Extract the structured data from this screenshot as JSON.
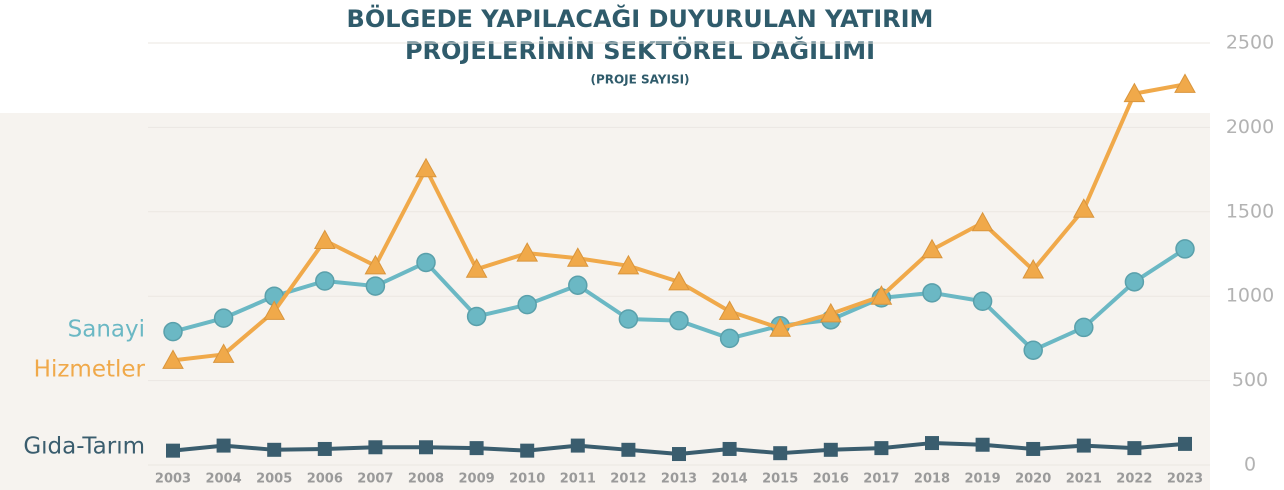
{
  "chart_data": {
    "type": "line",
    "title": [
      "BÖLGEDE YAPILACAĞI DUYURULAN YATIRIM",
      "PROJELERİNİN SEKTÖREL DAĞILIMI"
    ],
    "subtitle": "(PROJE SAYISI)",
    "categories": [
      "2003",
      "2004",
      "2005",
      "2006",
      "2007",
      "2008",
      "2009",
      "2010",
      "2011",
      "2012",
      "2013",
      "2014",
      "2015",
      "2016",
      "2017",
      "2018",
      "2019",
      "2020",
      "2021",
      "2022",
      "2023"
    ],
    "series": [
      {
        "name": "Sanayi",
        "color": "#6bb8c4",
        "marker": "circle",
        "values": [
          790,
          870,
          1000,
          1090,
          1060,
          1200,
          880,
          950,
          1065,
          865,
          855,
          750,
          825,
          860,
          990,
          1020,
          970,
          680,
          815,
          1085,
          1280
        ]
      },
      {
        "name": "Hizmetler",
        "color": "#f0a94a",
        "marker": "triangle",
        "values": [
          620,
          655,
          910,
          1330,
          1180,
          1755,
          1160,
          1255,
          1225,
          1180,
          1085,
          910,
          810,
          895,
          1000,
          1275,
          1435,
          1155,
          1515,
          2200,
          2255
        ]
      },
      {
        "name": "Gıda-Tarım",
        "color": "#3a5d6e",
        "marker": "square",
        "values": [
          85,
          115,
          90,
          95,
          105,
          105,
          100,
          85,
          115,
          90,
          65,
          95,
          70,
          90,
          100,
          130,
          120,
          95,
          115,
          100,
          125
        ]
      }
    ],
    "ylim": [
      0,
      2500
    ],
    "yticks": [
      0,
      500,
      1000,
      1500,
      2000,
      2500
    ],
    "grid": true
  }
}
